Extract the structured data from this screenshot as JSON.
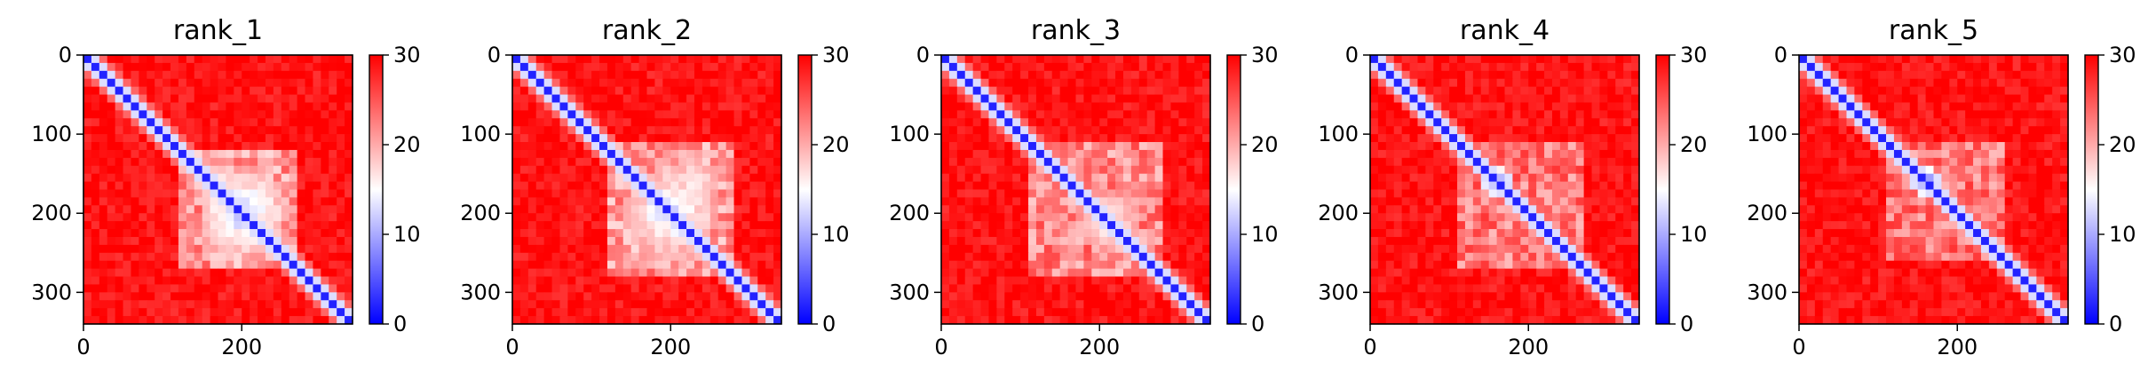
{
  "chart_data": [
    {
      "type": "heatmap",
      "title": "rank_1",
      "x_ticks": [
        0,
        200
      ],
      "y_ticks": [
        0,
        100,
        200,
        300
      ],
      "colorbar": {
        "ticks": [
          0,
          10,
          20,
          30
        ],
        "range": [
          0,
          30
        ],
        "colormap": "bwr"
      },
      "size": 340,
      "diag_width": 10,
      "blobs": [
        {
          "c": [
            200,
            200
          ],
          "r": 55,
          "level": 10
        },
        {
          "c": [
            160,
            170
          ],
          "r": 30,
          "level": 12
        }
      ],
      "box": {
        "from": [
          120,
          120
        ],
        "to": [
          270,
          270
        ],
        "level": 17
      }
    },
    {
      "type": "heatmap",
      "title": "rank_2",
      "x_ticks": [
        0,
        200
      ],
      "y_ticks": [
        0,
        100,
        200,
        300
      ],
      "colorbar": {
        "ticks": [
          0,
          10,
          20,
          30
        ],
        "range": [
          0,
          30
        ],
        "colormap": "bwr"
      },
      "size": 340,
      "diag_width": 10,
      "blobs": [
        {
          "c": [
            200,
            200
          ],
          "r": 60,
          "level": 11
        },
        {
          "c": [
            160,
            230
          ],
          "r": 35,
          "level": 13
        }
      ],
      "box": {
        "from": [
          110,
          120
        ],
        "to": [
          280,
          280
        ],
        "level": 17
      }
    },
    {
      "type": "heatmap",
      "title": "rank_3",
      "x_ticks": [
        0,
        200
      ],
      "y_ticks": [
        0,
        100,
        200,
        300
      ],
      "colorbar": {
        "ticks": [
          0,
          10,
          20,
          30
        ],
        "range": [
          0,
          30
        ],
        "colormap": "bwr"
      },
      "size": 340,
      "diag_width": 9,
      "blobs": [
        {
          "c": [
            210,
            210
          ],
          "r": 40,
          "level": 12
        }
      ],
      "box": {
        "from": [
          110,
          110
        ],
        "to": [
          280,
          280
        ],
        "level": 18
      }
    },
    {
      "type": "heatmap",
      "title": "rank_4",
      "x_ticks": [
        0,
        200
      ],
      "y_ticks": [
        0,
        100,
        200,
        300
      ],
      "colorbar": {
        "ticks": [
          0,
          10,
          20,
          30
        ],
        "range": [
          0,
          30
        ],
        "colormap": "bwr"
      },
      "size": 340,
      "diag_width": 9,
      "blobs": [
        {
          "c": [
            160,
            160
          ],
          "r": 18,
          "level": 6
        }
      ],
      "box": {
        "from": [
          110,
          110
        ],
        "to": [
          270,
          270
        ],
        "level": 19
      }
    },
    {
      "type": "heatmap",
      "title": "rank_5",
      "x_ticks": [
        0,
        200
      ],
      "y_ticks": [
        0,
        100,
        200,
        300
      ],
      "colorbar": {
        "ticks": [
          0,
          10,
          20,
          30
        ],
        "range": [
          0,
          30
        ],
        "colormap": "bwr"
      },
      "size": 340,
      "diag_width": 9,
      "blobs": [
        {
          "c": [
            160,
            160
          ],
          "r": 18,
          "level": 6
        }
      ],
      "box": {
        "from": [
          110,
          110
        ],
        "to": [
          260,
          260
        ],
        "level": 19
      }
    }
  ]
}
